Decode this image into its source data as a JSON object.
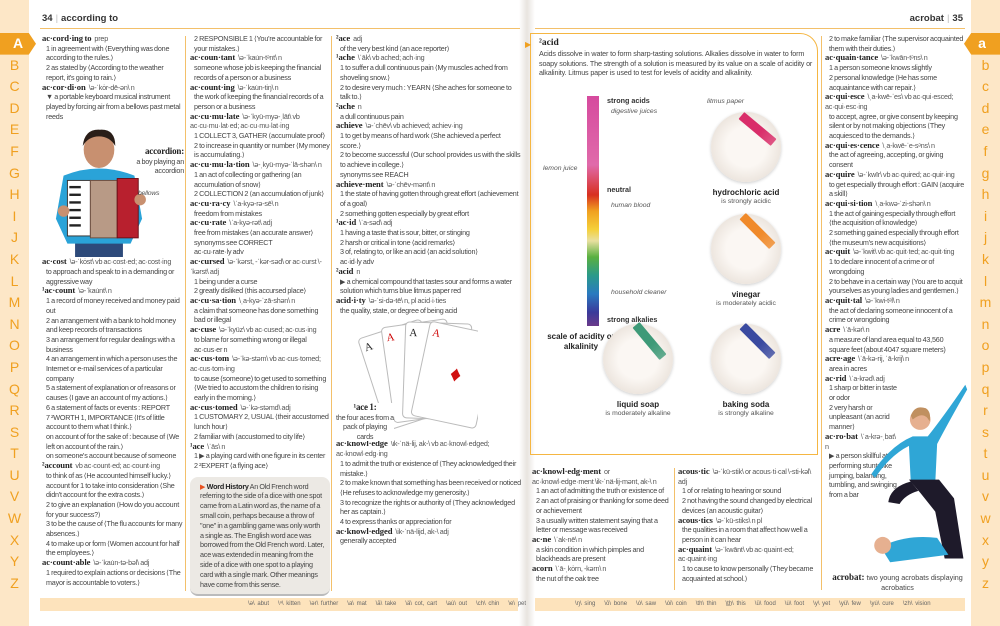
{
  "header": {
    "left_page": "34",
    "left_guide": "according to",
    "right_guide": "acrobat",
    "right_page": "35"
  },
  "tabs_upper": [
    "A",
    "B",
    "C",
    "D",
    "E",
    "F",
    "G",
    "H",
    "I",
    "J",
    "K",
    "L",
    "M",
    "N",
    "O",
    "P",
    "Q",
    "R",
    "S",
    "T",
    "U",
    "V",
    "W",
    "X",
    "Y",
    "Z"
  ],
  "tabs_lower": [
    "a",
    "b",
    "c",
    "d",
    "e",
    "f",
    "g",
    "h",
    "i",
    "j",
    "k",
    "l",
    "m",
    "n",
    "o",
    "p",
    "q",
    "r",
    "s",
    "t",
    "u",
    "v",
    "w",
    "x",
    "y",
    "z"
  ],
  "active_tab": "A",
  "colors": {
    "accent": "#f0a020",
    "strip": "#fde7c7",
    "rule": "#f3c06a"
  },
  "col1a": [
    {
      "hw": "ac·cord·ing to",
      "info": "prep",
      "senses": [
        "1 in agreement with ⟨Everything was done according to the rules.⟩",
        "2 as stated by ⟨According to the weather report, it's going to rain.⟩"
      ]
    },
    {
      "hw": "ac·cor·di·on",
      "info": "\\ə-ˈkȯr-dē-ən\\ n",
      "senses": [
        "▼ a portable keyboard musical instrument played by forcing air from a bellows past metal reeds"
      ]
    }
  ],
  "accordion_fig": {
    "title": "accordion:",
    "caption": "a boy playing an accordion",
    "label": "bellows"
  },
  "col1b": [
    {
      "hw": "ac·cost",
      "info": "\\ə-ˈkȯst\\ vb ac·cost·ed; ac·cost·ing",
      "senses": [
        "to approach and speak to in a demanding or aggressive way"
      ]
    },
    {
      "hw": "¹ac·count",
      "info": "\\ə-ˈkau̇nt\\ n",
      "senses": [
        "1 a record of money received and money paid out",
        "2 an arrangement with a bank to hold money and keep records of transactions",
        "3 an arrangement for regular dealings with a business",
        "4 an arrangement in which a person uses the Internet or e-mail services of a particular company",
        "5 a statement of explanation or of reasons or causes ⟨I gave an account of my actions.⟩",
        "6 a statement of facts or events : REPORT",
        "7 ²WORTH 1, IMPORTANCE ⟨It's of little account to them what I think.⟩",
        "on account of for the sake of : because of ⟨We left on account of the rain.⟩",
        "on someone's account because of someone"
      ]
    },
    {
      "hw": "²account",
      "info": "vb ac·count·ed; ac·count·ing",
      "senses": [
        "to think of as ⟨He accounted himself lucky.⟩",
        "account for 1 to take into consideration ⟨She didn't account for the extra costs.⟩",
        "2 to give an explanation ⟨How do you account for your success?⟩",
        "3 to be the cause of ⟨The flu accounts for many absences.⟩",
        "4 to make up or form ⟨Women account for half the employees.⟩"
      ]
    },
    {
      "hw": "ac·count·able",
      "info": "\\ə-ˈkau̇n-tə-bəl\\ adj",
      "senses": [
        "1 required to explain actions or decisions ⟨The mayor is accountable to voters.⟩"
      ]
    }
  ],
  "col2": [
    {
      "hw": "",
      "info": "",
      "senses": [
        "2 RESPONSIBLE 1 ⟨You're accountable for your mistakes.⟩"
      ]
    },
    {
      "hw": "ac·coun·tant",
      "info": "\\ə-ˈkau̇n-tᵊnt\\ n",
      "senses": [
        "someone whose job is keeping the financial records of a person or a business"
      ]
    },
    {
      "hw": "ac·count·ing",
      "info": "\\ə-ˈkau̇n-tiŋ\\ n",
      "senses": [
        "the work of keeping the financial records of a person or a business"
      ]
    },
    {
      "hw": "ac·cu·mu·late",
      "info": "\\ə-ˈkyü-myə-ˌlāt\\ vb ac·cu·mu·lat·ed; ac·cu·mu·lat·ing",
      "senses": [
        "1 COLLECT 3, GATHER ⟨accumulate proof⟩",
        "2 to increase in quantity or number ⟨My money is accumulating.⟩"
      ]
    },
    {
      "hw": "ac·cu·mu·la·tion",
      "info": "\\ə-ˌkyü-myə-ˈlā-shən\\ n",
      "senses": [
        "1 an act of collecting or gathering ⟨an accumulation of snow⟩",
        "2 COLLECTION 2 ⟨an accumulation of junk⟩"
      ]
    },
    {
      "hw": "ac·cu·ra·cy",
      "info": "\\ˈa-kyə-rə-sē\\ n",
      "senses": [
        "freedom from mistakes"
      ]
    },
    {
      "hw": "ac·cu·rate",
      "info": "\\ˈa-kyə-rət\\ adj",
      "senses": [
        "free from mistakes ⟨an accurate answer⟩",
        "synonyms see CORRECT",
        "ac·cu·rate·ly adv"
      ]
    },
    {
      "hw": "ac·cursed",
      "info": "\\ə-ˈkərst, -ˈkər-səd\\ or ac·curst \\-ˈkərst\\ adj",
      "senses": [
        "1 being under a curse",
        "2 greatly disliked ⟨this accursed place⟩"
      ]
    },
    {
      "hw": "ac·cu·sa·tion",
      "info": "\\ˌa-kyə-ˈzā-shən\\ n",
      "senses": [
        "a claim that someone has done something bad or illegal"
      ]
    },
    {
      "hw": "ac·cuse",
      "info": "\\ə-ˈkyüz\\ vb ac·cused; ac·cus·ing",
      "senses": [
        "to blame for something wrong or illegal",
        "ac·cus·er n"
      ]
    },
    {
      "hw": "ac·cus·tom",
      "info": "\\ə-ˈkə-stəm\\ vb ac·cus·tomed; ac·cus·tom·ing",
      "senses": [
        "to cause (someone) to get used to something ⟨We tried to accustom the children to rising early in the morning.⟩"
      ]
    },
    {
      "hw": "ac·cus·tomed",
      "info": "\\ə-ˈkə-stəmd\\ adj",
      "senses": [
        "1 CUSTOMARY 2, USUAL ⟨their accustomed lunch hour⟩",
        "2 familiar with ⟨accustomed to city life⟩"
      ]
    },
    {
      "hw": "¹ace",
      "info": "\\ˈās\\ n",
      "senses": [
        "1 ▶ a playing card with one figure in its center",
        "2 ²EXPERT ⟨a flying ace⟩"
      ]
    }
  ],
  "word_history": {
    "label": "Word History",
    "text": "An Old French word referring to the side of a dice with one spot came from a Latin word as, the name of a small coin, perhaps because a throw of \"one\" in a gambling game was only worth a single as. The English word ace was borrowed from the Old French word. Later, ace was extended in meaning from the side of a dice with one spot to a playing card with a single mark. Other meanings have come from this sense."
  },
  "col3a": [
    {
      "hw": "²ace",
      "info": "adj",
      "senses": [
        "of the very best kind ⟨an ace reporter⟩"
      ]
    },
    {
      "hw": "¹ache",
      "info": "\\ˈāk\\ vb ached; ach·ing",
      "senses": [
        "1 to suffer a dull continuous pain ⟨My muscles ached from shoveling snow.⟩",
        "2 to desire very much : YEARN ⟨She aches for someone to talk to.⟩"
      ]
    },
    {
      "hw": "²ache",
      "info": "n",
      "senses": [
        "a dull continuous pain"
      ]
    },
    {
      "hw": "achieve",
      "info": "\\ə-ˈchēv\\ vb achieved; achiev·ing",
      "senses": [
        "1 to get by means of hard work ⟨She achieved a perfect score.⟩",
        "2 to become successful ⟨Our school provides us with the skills to achieve in college.⟩",
        "synonyms see REACH"
      ]
    },
    {
      "hw": "achieve·ment",
      "info": "\\ə-ˈchēv-mənt\\ n",
      "senses": [
        "1 the state of having gotten through great effort ⟨achievement of a goal⟩",
        "2 something gotten especially by great effort"
      ]
    },
    {
      "hw": "¹ac·id",
      "info": "\\ˈa-səd\\ adj",
      "senses": [
        "1 having a taste that is sour, bitter, or stinging",
        "2 harsh or critical in tone ⟨acid remarks⟩",
        "3 of, relating to, or like an acid ⟨an acid solution⟩",
        "ac·id·ly adv"
      ]
    },
    {
      "hw": "²acid",
      "info": "n",
      "senses": [
        "▶ a chemical compound that tastes sour and forms a water solution which turns blue litmus paper red"
      ]
    },
    {
      "hw": "acid·i·ty",
      "info": "\\ə-ˈsi-də-tē\\ n, pl acid·i·ties",
      "senses": [
        "the quality, state, or degree of being acid"
      ]
    }
  ],
  "cards_fig": {
    "title": "¹ace 1:",
    "caption": "the four aces from a pack of playing cards",
    "card_letter": "A"
  },
  "col3b": [
    {
      "hw": "ac·knowl·edge",
      "info": "\\ik-ˈnä-lij, ak-\\ vb ac·knowl·edged; ac·knowl·edg·ing",
      "senses": [
        "1 to admit the truth or existence of ⟨They acknowledged their mistake.⟩",
        "2 to make known that something has been received or noticed ⟨He refuses to acknowledge my generosity.⟩",
        "3 to recognize the rights or authority of ⟨They acknowledged her as captain.⟩",
        "4 to express thanks or appreciation for"
      ]
    },
    {
      "hw": "ac·knowl·edged",
      "info": "\\ik-ˈnä-lijd, ak-\\ adj",
      "senses": [
        "generally accepted"
      ]
    }
  ],
  "acid_box": {
    "title": "²acid",
    "text": "Acids dissolve in water to form sharp-tasting solutions. Alkalies dissolve in water to form soapy solutions. The strength of a solution is measured by its value on a scale of acidity or alkalinity. Litmus paper is used to test for levels of acidity and alkalinity.",
    "scale_labels": {
      "strong_acids": "strong acids",
      "digestive": "digestive juices",
      "lemon": "lemon juice",
      "neutral": "neutral",
      "blood": "human blood",
      "cleaner": "household cleaner",
      "strong_alkalies": "strong alkalies"
    },
    "scale_caption": "scale of acidity or alkalinity",
    "litmus_label": "litmus paper",
    "dishes": [
      {
        "name": "hydrochloric acid",
        "desc": "is strongly acidic",
        "color": "#d92e6a"
      },
      {
        "name": "vinegar",
        "desc": "is moderately acidic",
        "color": "#f08a2a"
      },
      {
        "name": "liquid soap",
        "desc": "is moderately alkaline",
        "color": "#3e9a78"
      },
      {
        "name": "baking soda",
        "desc": "is strongly alkaline",
        "color": "#3a4aa0"
      }
    ]
  },
  "col4": [
    {
      "hw": "ac·knowl·edg·ment",
      "info": "or ac·knowl·edge·ment \\ik-ˈnä-lij-mənt, ak-\\ n",
      "senses": [
        "1 an act of admitting the truth or existence of",
        "2 an act of praising or thanking for some deed or achievement",
        "3 a usually written statement saying that a letter or message was received"
      ]
    },
    {
      "hw": "ac·ne",
      "info": "\\ˈak-nē\\ n",
      "senses": [
        "a skin condition in which pimples and blackheads are present"
      ]
    },
    {
      "hw": "acorn",
      "info": "\\ˈā-ˌkȯrn, -kərn\\ n",
      "senses": [
        "the nut of the oak tree"
      ]
    }
  ],
  "col5": [
    {
      "hw": "acous·tic",
      "info": "\\ə-ˈkü-stik\\ or acous·ti·cal \\-sti-kəl\\ adj",
      "senses": [
        "1 of or relating to hearing or sound",
        "2 not having the sound changed by electrical devices ⟨an acoustic guitar⟩"
      ]
    },
    {
      "hw": "acous·tics",
      "info": "\\ə-ˈkü-stiks\\ n pl",
      "senses": [
        "the qualities in a room that affect how well a person in it can hear"
      ]
    },
    {
      "hw": "ac·quaint",
      "info": "\\ə-ˈkwānt\\ vb ac·quaint·ed; ac·quaint·ing",
      "senses": [
        "1 to cause to know personally ⟨They became acquainted at school.⟩"
      ]
    }
  ],
  "col6": [
    {
      "hw": "",
      "info": "",
      "senses": [
        "2 to make familiar ⟨The supervisor acquainted them with their duties.⟩"
      ]
    },
    {
      "hw": "ac·quain·tance",
      "info": "\\ə-ˈkwān-tᵊns\\ n",
      "senses": [
        "1 a person someone knows slightly",
        "2 personal knowledge ⟨He has some acquaintance with car repair.⟩"
      ]
    },
    {
      "hw": "ac·qui·esce",
      "info": "\\ˌa-kwē-ˈes\\ vb ac·qui·esced; ac·qui·esc·ing",
      "senses": [
        "to accept, agree, or give consent by keeping silent or by not making objections ⟨They acquiesced to the demands.⟩"
      ]
    },
    {
      "hw": "ac·qui·es·cence",
      "info": "\\ˌa-kwē-ˈe-sᵊns\\ n",
      "senses": [
        "the act of agreeing, accepting, or giving consent"
      ]
    },
    {
      "hw": "ac·quire",
      "info": "\\ə-ˈkwīr\\ vb ac·quired; ac·quir·ing",
      "senses": [
        "to get especially through effort : GAIN ⟨acquire a skill⟩"
      ]
    },
    {
      "hw": "ac·qui·si·tion",
      "info": "\\ˌa-kwə-ˈzi-shən\\ n",
      "senses": [
        "1 the act of gaining especially through effort ⟨the acquisition of knowledge⟩",
        "2 something gained especially through effort ⟨the museum's new acquisitions⟩"
      ]
    },
    {
      "hw": "ac·quit",
      "info": "\\ə-ˈkwit\\ vb ac·quit·ted; ac·quit·ting",
      "senses": [
        "1 to declare innocent of a crime or of wrongdoing",
        "2 to behave in a certain way ⟨You are to acquit yourselves as young ladies and gentlemen.⟩"
      ]
    },
    {
      "hw": "ac·quit·tal",
      "info": "\\ə-ˈkwi-tᵊl\\ n",
      "senses": [
        "the act of declaring someone innocent of a crime or wrongdoing"
      ]
    },
    {
      "hw": "acre",
      "info": "\\ˈā-kər\\ n",
      "senses": [
        "a measure of land area equal to 43,560 square feet (about 4047 square meters)"
      ]
    },
    {
      "hw": "acre·age",
      "info": "\\ˈā-kə-rij, ˈā-krij\\ n",
      "senses": [
        "area in acres"
      ]
    }
  ],
  "col6b": [
    {
      "hw": "ac·rid",
      "info": "\\ˈa-krəd\\ adj",
      "senses": [
        "1 sharp or bitter in taste or odor",
        "2 very harsh or unpleasant ⟨an acrid manner⟩"
      ]
    },
    {
      "hw": "ac·ro·bat",
      "info": "\\ˈa-krə-ˌbat\\ n",
      "senses": [
        "▶ a person skillful at performing stunts like jumping, balancing, tumbling, and swinging from a bar"
      ]
    }
  ],
  "acrobat_fig": {
    "title": "acrobat:",
    "caption": "two young acrobats displaying acrobatics"
  },
  "pron_left": [
    "\\ə\\ abut",
    "\\ᵊ\\ kitten",
    "\\ər\\ further",
    "\\a\\ mat",
    "\\ā\\ take",
    "\\ä\\ cot, cart",
    "\\au̇\\ out",
    "\\ch\\ chin",
    "\\e\\ pet",
    "\\ē\\ easy",
    "\\g\\ go",
    "\\i\\ tip",
    "\\ī\\ life",
    "\\j\\ job"
  ],
  "pron_right": [
    "\\ŋ\\ sing",
    "\\ō\\ bone",
    "\\ȯ\\ saw",
    "\\ȯi\\ coin",
    "\\th\\ thin",
    "\\t͟h\\ this",
    "\\ü\\ food",
    "\\u̇\\ foot",
    "\\y\\ yet",
    "\\yü\\ few",
    "\\yu̇\\ cure",
    "\\zh\\ vision"
  ]
}
